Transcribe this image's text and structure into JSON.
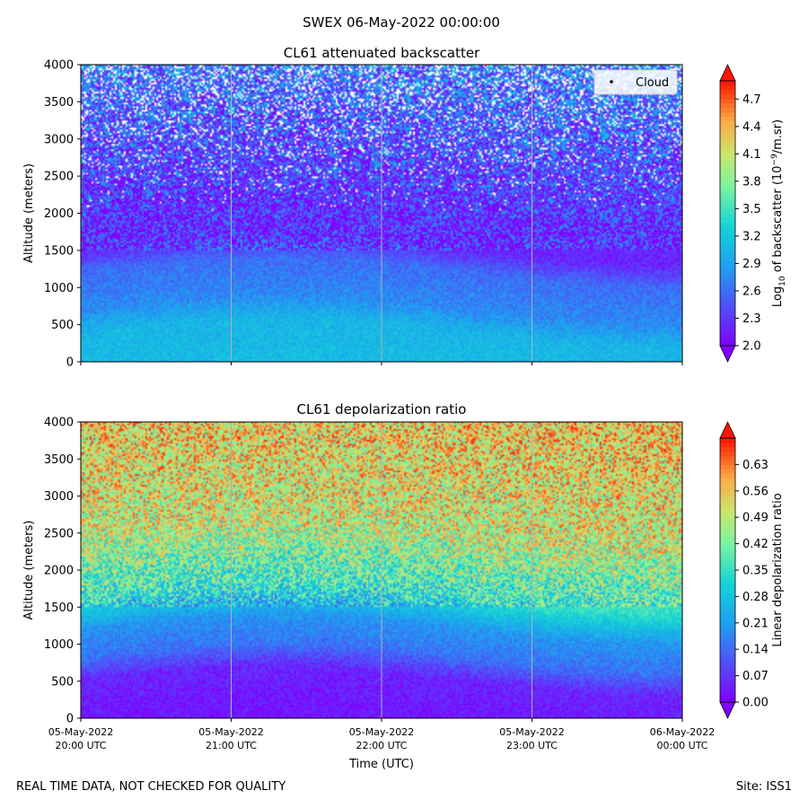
{
  "suptitle": "SWEX 06-May-2022 00:00:00",
  "footer": {
    "left": "REAL TIME DATA, NOT CHECKED FOR QUALITY",
    "right": "Site: ISS1"
  },
  "x_axis": {
    "label": "Time (UTC)",
    "ticks": [
      {
        "value": 0,
        "line1": "05-May-2022",
        "line2": "20:00 UTC"
      },
      {
        "value": 1,
        "line1": "05-May-2022",
        "line2": "21:00 UTC"
      },
      {
        "value": 2,
        "line1": "05-May-2022",
        "line2": "22:00 UTC"
      },
      {
        "value": 3,
        "line1": "05-May-2022",
        "line2": "23:00 UTC"
      },
      {
        "value": 4,
        "line1": "06-May-2022",
        "line2": "00:00 UTC"
      }
    ],
    "range_hours": [
      0,
      4
    ]
  },
  "chart_data": [
    {
      "type": "heatmap",
      "title": "CL61 attenuated backscatter",
      "xlabel": "",
      "ylabel": "Altitude (meters)",
      "ylim": [
        0,
        4000
      ],
      "yticks": [
        0,
        500,
        1000,
        1500,
        2000,
        2500,
        3000,
        3500,
        4000
      ],
      "legend": {
        "label": "Cloud",
        "position": "top-right"
      },
      "colorbar": {
        "label_prefix": "Log",
        "label_sub": "10",
        "label_mid": " of backscatter (10",
        "label_sup": "−9",
        "label_suffix": "/m.sr)",
        "range": [
          2.0,
          4.9
        ],
        "ticks": [
          "2.0",
          "2.3",
          "2.6",
          "2.9",
          "3.2",
          "3.5",
          "3.8",
          "4.1",
          "4.4",
          "4.7"
        ],
        "extend": "both"
      },
      "vertical_gridlines_hours": [
        1,
        2,
        3
      ],
      "profile": [
        {
          "alt": 0,
          "value": 3.1
        },
        {
          "alt": 400,
          "value": 3.05
        },
        {
          "alt": 700,
          "value": 2.75
        },
        {
          "alt": 1200,
          "value": 2.6
        },
        {
          "alt": 1500,
          "value": 2.2
        },
        {
          "alt": 2000,
          "value": 2.25
        },
        {
          "alt": 4000,
          "value": 2.7
        }
      ]
    },
    {
      "type": "heatmap",
      "title": "CL61 depolarization ratio",
      "xlabel": "Time (UTC)",
      "ylabel": "Altitude (meters)",
      "ylim": [
        0,
        4000
      ],
      "yticks": [
        0,
        500,
        1000,
        1500,
        2000,
        2500,
        3000,
        3500,
        4000
      ],
      "colorbar": {
        "label": "Linear depolarization ratio",
        "range": [
          0.0,
          0.7
        ],
        "ticks": [
          "0.00",
          "0.07",
          "0.14",
          "0.21",
          "0.28",
          "0.35",
          "0.42",
          "0.49",
          "0.56",
          "0.63"
        ],
        "extend": "both"
      },
      "vertical_gridlines_hours": [
        1,
        2,
        3
      ],
      "profile": [
        {
          "alt": 0,
          "value": 0.03
        },
        {
          "alt": 500,
          "value": 0.05
        },
        {
          "alt": 800,
          "value": 0.15
        },
        {
          "alt": 1200,
          "value": 0.2
        },
        {
          "alt": 1600,
          "value": 0.35
        },
        {
          "alt": 2500,
          "value": 0.5
        },
        {
          "alt": 4000,
          "value": 0.55
        }
      ]
    }
  ]
}
